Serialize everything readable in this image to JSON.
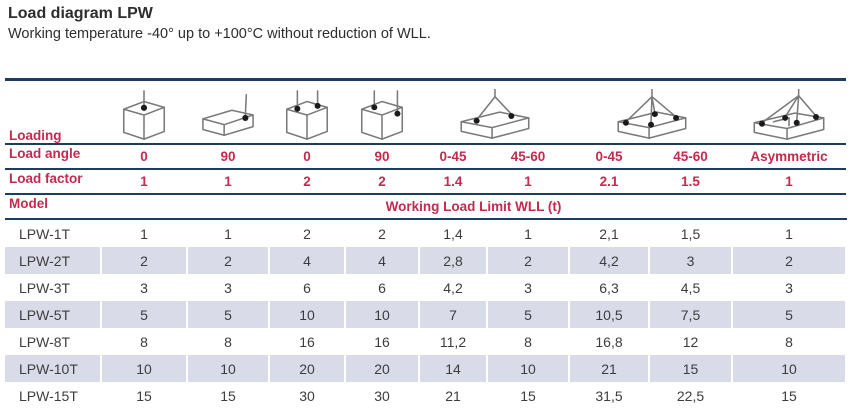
{
  "page": {
    "title": "Load diagram LPW",
    "subtitle": "Working temperature -40° up to +100°C without reduction of WLL."
  },
  "colors": {
    "accent_red": "#c32a4e",
    "border_navy": "#1d3c60",
    "row_shade": "#d9dbe8",
    "body_text": "#3d3d3d"
  },
  "table": {
    "loading_label": "Loading",
    "load_angle_label": "Load angle",
    "load_factor_label": "Load factor",
    "model_label": "Model",
    "wll_header": "Working Load Limit WLL (t)",
    "icons": [
      {
        "name": "cube-single-lift-point-icon",
        "span": 1
      },
      {
        "name": "flat-box-side-lift-point-icon",
        "span": 1
      },
      {
        "name": "cube-two-lift-points-icon",
        "span": 1
      },
      {
        "name": "cube-lift-points-top-and-side-icon",
        "span": 1
      },
      {
        "name": "flat-box-two-leg-sling-icon",
        "span": 2
      },
      {
        "name": "flat-box-four-leg-sling-icon",
        "span": 2
      },
      {
        "name": "flat-box-asymmetric-sling-icon",
        "span": 1
      }
    ],
    "load_angles": [
      "0",
      "90",
      "0",
      "90",
      "0-45",
      "45-60",
      "0-45",
      "45-60",
      "Asymmetric"
    ],
    "load_factors": [
      "1",
      "1",
      "2",
      "2",
      "1.4",
      "1",
      "2.1",
      "1.5",
      "1"
    ],
    "rows": [
      {
        "model": "LPW-1T",
        "values": [
          "1",
          "1",
          "2",
          "2",
          "1,4",
          "1",
          "2,1",
          "1,5",
          "1"
        ]
      },
      {
        "model": "LPW-2T",
        "values": [
          "2",
          "2",
          "4",
          "4",
          "2,8",
          "2",
          "4,2",
          "3",
          "2"
        ]
      },
      {
        "model": "LPW-3T",
        "values": [
          "3",
          "3",
          "6",
          "6",
          "4,2",
          "3",
          "6,3",
          "4,5",
          "3"
        ]
      },
      {
        "model": "LPW-5T",
        "values": [
          "5",
          "5",
          "10",
          "10",
          "7",
          "5",
          "10,5",
          "7,5",
          "5"
        ]
      },
      {
        "model": "LPW-8T",
        "values": [
          "8",
          "8",
          "16",
          "16",
          "11,2",
          "8",
          "16,8",
          "12",
          "8"
        ]
      },
      {
        "model": "LPW-10T",
        "values": [
          "10",
          "10",
          "20",
          "20",
          "14",
          "10",
          "21",
          "15",
          "10"
        ]
      },
      {
        "model": "LPW-15T",
        "values": [
          "15",
          "15",
          "30",
          "30",
          "21",
          "15",
          "31,5",
          "22,5",
          "15"
        ]
      }
    ]
  }
}
